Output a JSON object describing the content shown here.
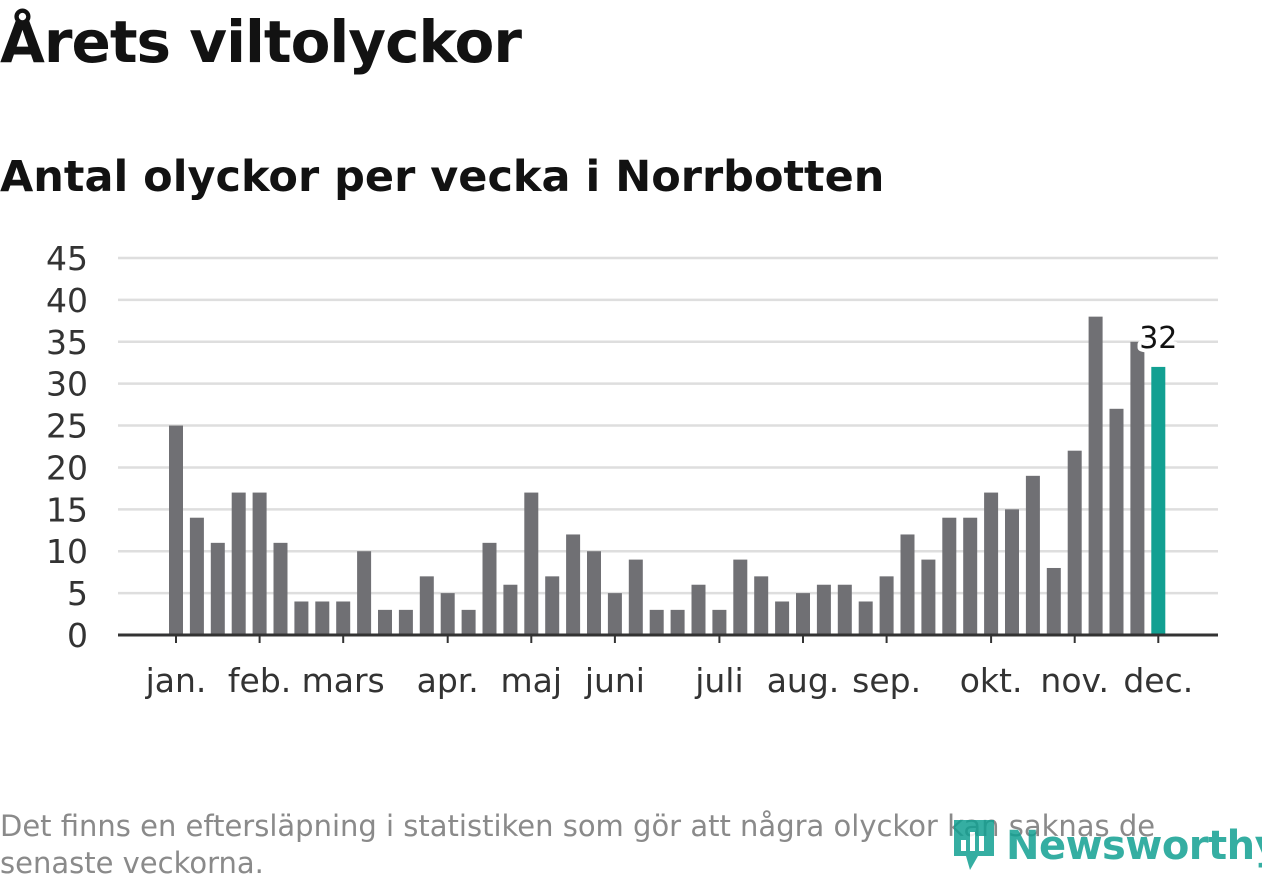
{
  "title": "Årets viltolyckor",
  "subtitle": "Antal olyckor per vecka i Norrbotten",
  "footnote": "Det finns en eftersläpning i statistiken som gör att några olyckor kan saknas de senaste veckorna.",
  "brand": {
    "name": "Newsworthy",
    "icon": "newsworthy-logo-icon"
  },
  "colors": {
    "bar": "#707074",
    "highlight": "#12a092",
    "grid": "#dedede",
    "axis": "#333333"
  },
  "chart_data": {
    "type": "bar",
    "title": "Antal olyckor per vecka i Norrbotten",
    "xlabel": "",
    "ylabel": "",
    "ylim": [
      0,
      45
    ],
    "yticks": [
      0,
      5,
      10,
      15,
      20,
      25,
      30,
      35,
      40,
      45
    ],
    "grid": true,
    "values": [
      25,
      14,
      11,
      17,
      17,
      11,
      4,
      4,
      4,
      10,
      3,
      3,
      7,
      5,
      3,
      11,
      6,
      17,
      7,
      12,
      10,
      5,
      9,
      3,
      3,
      6,
      3,
      9,
      7,
      4,
      5,
      6,
      6,
      4,
      7,
      12,
      9,
      14,
      14,
      17,
      15,
      19,
      8,
      22,
      38,
      27,
      35,
      32
    ],
    "highlight_index": 47,
    "highlight_label": "32",
    "month_labels": [
      {
        "label": "jan.",
        "bar_index": 0
      },
      {
        "label": "feb.",
        "bar_index": 4
      },
      {
        "label": "mars",
        "bar_index": 8
      },
      {
        "label": "apr.",
        "bar_index": 13
      },
      {
        "label": "maj",
        "bar_index": 17
      },
      {
        "label": "juni",
        "bar_index": 21
      },
      {
        "label": "juli",
        "bar_index": 26
      },
      {
        "label": "aug.",
        "bar_index": 30
      },
      {
        "label": "sep.",
        "bar_index": 34
      },
      {
        "label": "okt.",
        "bar_index": 39
      },
      {
        "label": "nov.",
        "bar_index": 43
      },
      {
        "label": "dec.",
        "bar_index": 47
      }
    ]
  }
}
